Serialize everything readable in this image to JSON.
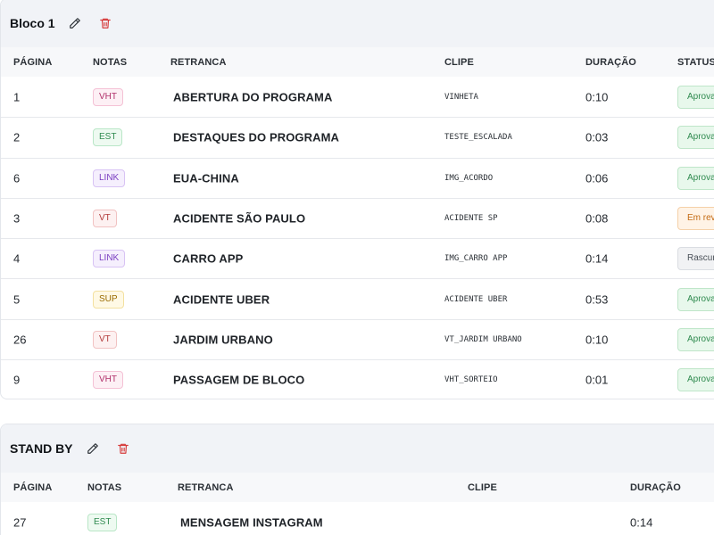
{
  "blocks": [
    {
      "title": "Bloco 1",
      "headers": {
        "pagina": "PÁGINA",
        "notas": "NOTAS",
        "retranca": "RETRANCA",
        "clipe": "CLIPE",
        "duracao": "DURAÇÃO",
        "status": "STATUS"
      },
      "rows": [
        {
          "pagina": "1",
          "nota": "VHT",
          "retranca": "ABERTURA DO PROGRAMA",
          "clipe": "VINHETA",
          "duracao": "0:10",
          "status": "Aprovado"
        },
        {
          "pagina": "2",
          "nota": "EST",
          "retranca": "DESTAQUES DO PROGRAMA",
          "clipe": "TESTE_ESCALADA",
          "duracao": "0:03",
          "status": "Aprovado"
        },
        {
          "pagina": "6",
          "nota": "LINK",
          "retranca": "EUA-CHINA",
          "clipe": "IMG_ACORDO",
          "duracao": "0:06",
          "status": "Aprovado"
        },
        {
          "pagina": "3",
          "nota": "VT",
          "retranca": "ACIDENTE SÃO PAULO",
          "clipe": "ACIDENTE SP",
          "duracao": "0:08",
          "status": "Em revisão"
        },
        {
          "pagina": "4",
          "nota": "LINK",
          "retranca": "CARRO APP",
          "clipe": "IMG_CARRO APP",
          "duracao": "0:14",
          "status": "Rascunho"
        },
        {
          "pagina": "5",
          "nota": "SUP",
          "retranca": "ACIDENTE UBER",
          "clipe": "ACIDENTE UBER",
          "duracao": "0:53",
          "status": "Aprovado"
        },
        {
          "pagina": "26",
          "nota": "VT",
          "retranca": "JARDIM URBANO",
          "clipe": "VT_JARDIM URBANO",
          "duracao": "0:10",
          "status": "Aprovado"
        },
        {
          "pagina": "9",
          "nota": "VHT",
          "retranca": "PASSAGEM DE BLOCO",
          "clipe": "VHT_SORTEIO",
          "duracao": "0:01",
          "status": "Aprovado"
        }
      ]
    },
    {
      "title": "STAND BY",
      "headers": {
        "pagina": "PÁGINA",
        "notas": "NOTAS",
        "retranca": "RETRANCA",
        "clipe": "CLIPE",
        "duracao": "DURAÇÃO"
      },
      "rows": [
        {
          "pagina": "27",
          "nota": "EST",
          "retranca": "MENSAGEM INSTAGRAM",
          "clipe": "",
          "duracao": "0:14"
        }
      ]
    }
  ],
  "colors": {
    "status_approved": "#2f8a4f",
    "status_review": "#c46a12",
    "status_draft": "#4a5058",
    "delete_icon": "#d63b3b"
  },
  "icons": {
    "edit": "pencil-icon",
    "delete": "trash-icon"
  }
}
